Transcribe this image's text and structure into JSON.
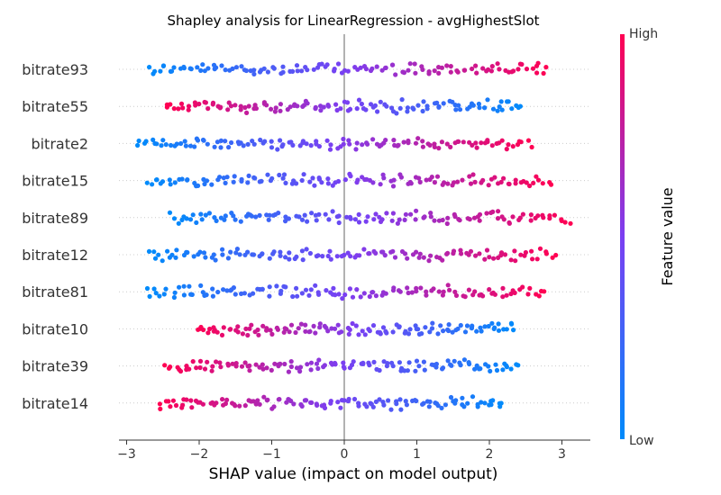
{
  "chart_data": {
    "type": "scatter",
    "subtype": "shap-beeswarm",
    "title": "Shapley analysis for LinearRegression - avgHighestSlot",
    "xlabel": "SHAP value (impact on model output)",
    "xlim": [
      -3,
      3.4
    ],
    "xticks": [
      "−3",
      "−2",
      "−1",
      "0",
      "1",
      "2",
      "3"
    ],
    "xtick_values": [
      -3,
      -2,
      -1,
      0,
      1,
      2,
      3
    ],
    "colorbar": {
      "title": "Feature value",
      "high_label": "High",
      "low_label": "Low",
      "low_color": "#008bfb",
      "high_color": "#ff0052"
    },
    "features": [
      {
        "name": "bitrate93",
        "range": [
          -2.7,
          2.8
        ],
        "direction": 1
      },
      {
        "name": "bitrate55",
        "range": [
          -2.45,
          2.45
        ],
        "direction": -1
      },
      {
        "name": "bitrate2",
        "range": [
          -2.85,
          2.55
        ],
        "direction": 1
      },
      {
        "name": "bitrate15",
        "range": [
          -2.7,
          2.85
        ],
        "direction": 1
      },
      {
        "name": "bitrate89",
        "range": [
          -2.4,
          3.1
        ],
        "direction": 1
      },
      {
        "name": "bitrate12",
        "range": [
          -2.7,
          2.9
        ],
        "direction": 1
      },
      {
        "name": "bitrate81",
        "range": [
          -2.7,
          2.75
        ],
        "direction": 1
      },
      {
        "name": "bitrate10",
        "range": [
          -2.05,
          2.35
        ],
        "direction": -1
      },
      {
        "name": "bitrate39",
        "range": [
          -2.45,
          2.4
        ],
        "direction": -1
      },
      {
        "name": "bitrate14",
        "range": [
          -2.55,
          2.2
        ],
        "direction": -1
      }
    ]
  }
}
